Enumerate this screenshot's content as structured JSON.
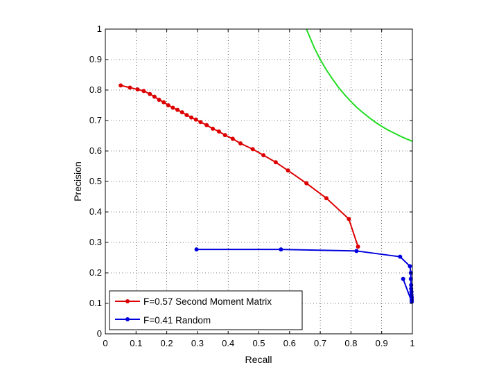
{
  "chart_data": {
    "type": "line",
    "title": "",
    "xlabel": "Recall",
    "ylabel": "Precision",
    "xlim": [
      0,
      1
    ],
    "ylim": [
      0,
      1
    ],
    "xticks": [
      "0",
      "0.1",
      "0.2",
      "0.3",
      "0.4",
      "0.5",
      "0.6",
      "0.7",
      "0.8",
      "0.9",
      "1"
    ],
    "yticks": [
      "0",
      "0.1",
      "0.2",
      "0.3",
      "0.4",
      "0.5",
      "0.6",
      "0.7",
      "0.8",
      "0.9",
      "1"
    ],
    "grid": true,
    "legend_position": "bottom-left",
    "series": [
      {
        "name": "F=0.57 Second Moment Matrix",
        "color": "#dd0000",
        "marker": "dot",
        "x": [
          0.05,
          0.08,
          0.105,
          0.125,
          0.145,
          0.16,
          0.175,
          0.19,
          0.205,
          0.22,
          0.235,
          0.25,
          0.265,
          0.28,
          0.295,
          0.31,
          0.33,
          0.35,
          0.37,
          0.39,
          0.415,
          0.44,
          0.48,
          0.515,
          0.555,
          0.595,
          0.655,
          0.72,
          0.793,
          0.823
        ],
        "y": [
          0.815,
          0.808,
          0.802,
          0.797,
          0.787,
          0.778,
          0.768,
          0.76,
          0.75,
          0.742,
          0.735,
          0.727,
          0.718,
          0.71,
          0.703,
          0.695,
          0.685,
          0.673,
          0.664,
          0.652,
          0.64,
          0.625,
          0.606,
          0.586,
          0.563,
          0.536,
          0.494,
          0.445,
          0.377,
          0.286
        ]
      },
      {
        "name": "F=0.41 Random",
        "color": "#0000dd",
        "marker": "dot",
        "x": [
          0.297,
          0.572,
          0.818,
          0.96,
          0.992,
          0.995,
          0.995,
          0.996,
          0.996,
          0.997,
          0.997,
          0.998,
          0.998,
          0.998,
          0.97
        ],
        "y": [
          0.277,
          0.277,
          0.272,
          0.253,
          0.222,
          0.2,
          0.18,
          0.16,
          0.148,
          0.138,
          0.128,
          0.12,
          0.112,
          0.105,
          0.18
        ]
      },
      {
        "name": "",
        "color": "#22dd22",
        "marker": "none",
        "x": [
          0.655,
          0.68,
          0.7,
          0.72,
          0.74,
          0.76,
          0.78,
          0.8,
          0.82,
          0.84,
          0.86,
          0.88,
          0.9,
          0.92,
          0.94,
          0.96,
          0.98,
          1.0
        ],
        "y": [
          1.0,
          0.94,
          0.9,
          0.866,
          0.836,
          0.808,
          0.784,
          0.762,
          0.742,
          0.725,
          0.709,
          0.694,
          0.681,
          0.669,
          0.659,
          0.649,
          0.64,
          0.632
        ]
      }
    ]
  }
}
